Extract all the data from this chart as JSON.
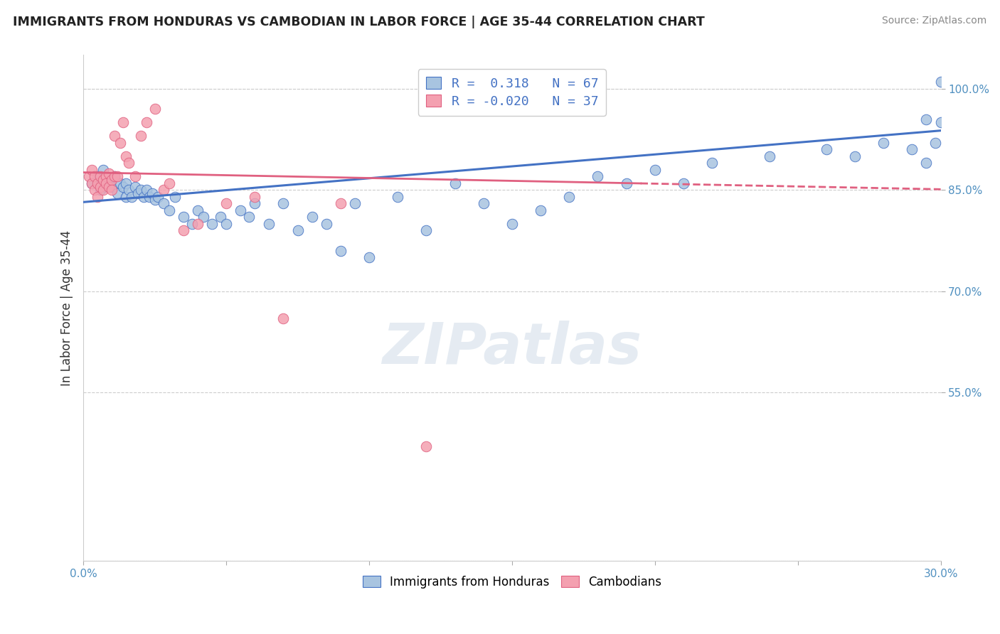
{
  "title": "IMMIGRANTS FROM HONDURAS VS CAMBODIAN IN LABOR FORCE | AGE 35-44 CORRELATION CHART",
  "source": "Source: ZipAtlas.com",
  "ylabel": "In Labor Force | Age 35-44",
  "xlim": [
    0.0,
    0.3
  ],
  "ylim": [
    0.3,
    1.05
  ],
  "legend_entries": [
    {
      "label": "R =  0.318   N = 67",
      "color": "#a8c4e0"
    },
    {
      "label": "R = -0.020   N = 37",
      "color": "#f4a0b0"
    }
  ],
  "legend_labels_bottom": [
    "Immigrants from Honduras",
    "Cambodians"
  ],
  "honduras_color": "#a8c4e0",
  "cambodian_color": "#f4a0b0",
  "trend_blue": "#4472c4",
  "trend_pink": "#e06080",
  "watermark": "ZIPatlas",
  "watermark_color": "#d0dce8",
  "honduras_x": [
    0.003,
    0.005,
    0.006,
    0.007,
    0.008,
    0.009,
    0.01,
    0.011,
    0.012,
    0.013,
    0.014,
    0.015,
    0.015,
    0.016,
    0.017,
    0.018,
    0.019,
    0.02,
    0.021,
    0.022,
    0.023,
    0.024,
    0.025,
    0.026,
    0.028,
    0.03,
    0.032,
    0.035,
    0.038,
    0.04,
    0.042,
    0.045,
    0.048,
    0.05,
    0.055,
    0.058,
    0.06,
    0.065,
    0.07,
    0.075,
    0.08,
    0.085,
    0.09,
    0.095,
    0.1,
    0.11,
    0.12,
    0.13,
    0.14,
    0.15,
    0.16,
    0.17,
    0.18,
    0.19,
    0.2,
    0.21,
    0.22,
    0.24,
    0.26,
    0.27,
    0.28,
    0.29,
    0.295,
    0.298,
    0.3,
    0.3,
    0.295
  ],
  "honduras_y": [
    0.86,
    0.87,
    0.85,
    0.88,
    0.855,
    0.865,
    0.855,
    0.87,
    0.845,
    0.86,
    0.855,
    0.84,
    0.86,
    0.85,
    0.84,
    0.855,
    0.845,
    0.85,
    0.84,
    0.85,
    0.84,
    0.845,
    0.835,
    0.84,
    0.83,
    0.82,
    0.84,
    0.81,
    0.8,
    0.82,
    0.81,
    0.8,
    0.81,
    0.8,
    0.82,
    0.81,
    0.83,
    0.8,
    0.83,
    0.79,
    0.81,
    0.8,
    0.76,
    0.83,
    0.75,
    0.84,
    0.79,
    0.86,
    0.83,
    0.8,
    0.82,
    0.84,
    0.87,
    0.86,
    0.88,
    0.86,
    0.89,
    0.9,
    0.91,
    0.9,
    0.92,
    0.91,
    0.89,
    0.92,
    0.95,
    1.01,
    0.955
  ],
  "cambodian_x": [
    0.002,
    0.003,
    0.003,
    0.004,
    0.004,
    0.005,
    0.005,
    0.006,
    0.006,
    0.007,
    0.007,
    0.008,
    0.008,
    0.009,
    0.009,
    0.01,
    0.01,
    0.011,
    0.011,
    0.012,
    0.013,
    0.014,
    0.015,
    0.016,
    0.018,
    0.02,
    0.022,
    0.025,
    0.028,
    0.03,
    0.035,
    0.04,
    0.05,
    0.06,
    0.07,
    0.09,
    0.12
  ],
  "cambodian_y": [
    0.87,
    0.88,
    0.86,
    0.87,
    0.85,
    0.86,
    0.84,
    0.87,
    0.855,
    0.865,
    0.85,
    0.87,
    0.86,
    0.875,
    0.855,
    0.865,
    0.85,
    0.87,
    0.93,
    0.87,
    0.92,
    0.95,
    0.9,
    0.89,
    0.87,
    0.93,
    0.95,
    0.97,
    0.85,
    0.86,
    0.79,
    0.8,
    0.83,
    0.84,
    0.66,
    0.83,
    0.47
  ]
}
